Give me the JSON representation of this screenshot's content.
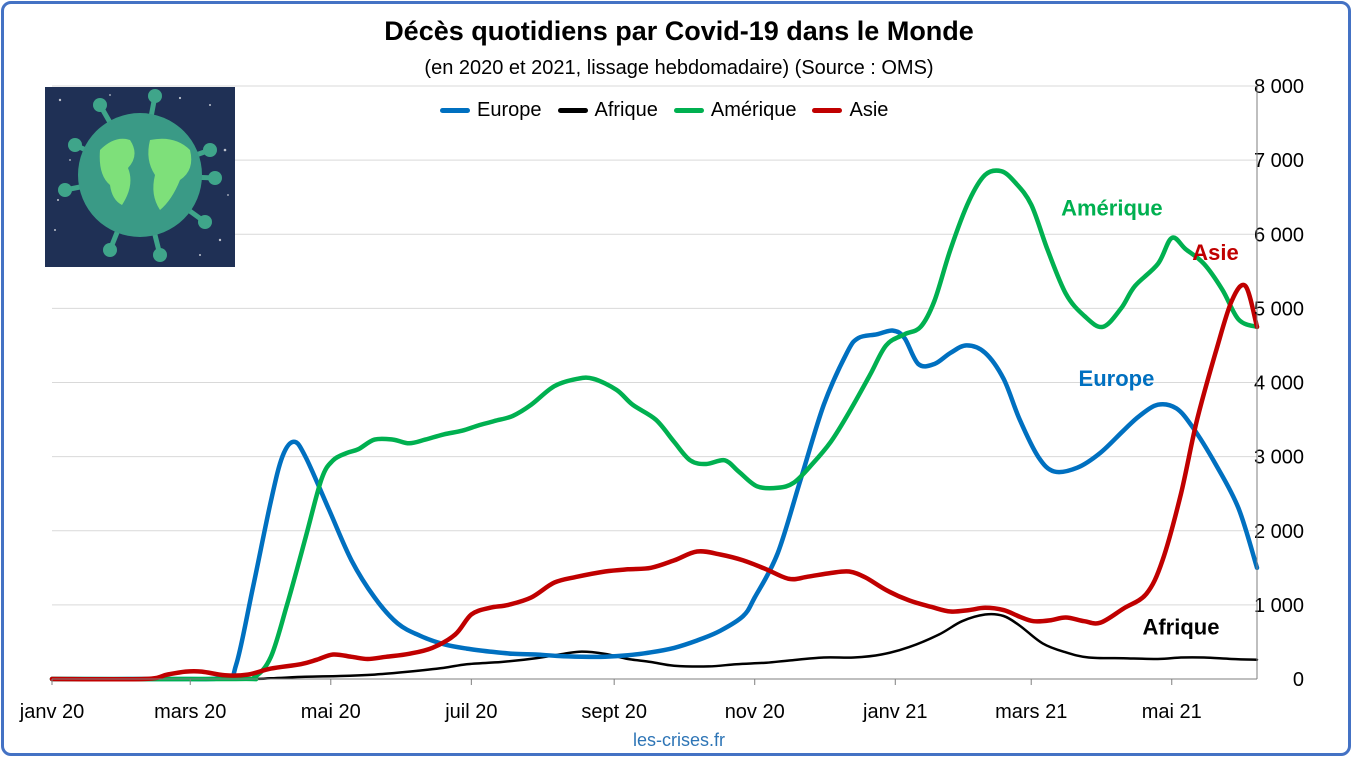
{
  "chart_data": {
    "type": "line",
    "title": "Décès quotidiens par Covid-19 dans le Monde",
    "subtitle": "(en 2020 et 2021, lissage hebdomadaire) (Source : OMS)",
    "source": "les-crises.fr",
    "x_tick_labels": [
      "janv 20",
      "mars 20",
      "mai 20",
      "juil 20",
      "sept 20",
      "nov 20",
      "janv 21",
      "mars 21",
      "mai 21"
    ],
    "x_tick_days": [
      0,
      60,
      121,
      182,
      244,
      305,
      366,
      425,
      486
    ],
    "x_range": [
      "2020-01-01",
      "2021-06-07"
    ],
    "x_range_days": [
      0,
      523
    ],
    "y_ticks": [
      0,
      1000,
      2000,
      3000,
      4000,
      5000,
      6000,
      7000,
      8000
    ],
    "y_tick_labels": [
      "0",
      "1 000",
      "2 000",
      "3 000",
      "4 000",
      "5 000",
      "6 000",
      "7 000",
      "8 000"
    ],
    "ylim": [
      0,
      8000
    ],
    "y_axis_side": "right",
    "grid": true,
    "legend_position": "top",
    "series": [
      {
        "name": "Europe",
        "color": "#0070c0",
        "label": "Europe",
        "points": [
          [
            0,
            0
          ],
          [
            50,
            0
          ],
          [
            75,
            20
          ],
          [
            80,
            200
          ],
          [
            87,
            1200
          ],
          [
            95,
            2400
          ],
          [
            100,
            3000
          ],
          [
            105,
            3200
          ],
          [
            110,
            3000
          ],
          [
            120,
            2300
          ],
          [
            130,
            1600
          ],
          [
            140,
            1100
          ],
          [
            150,
            750
          ],
          [
            160,
            580
          ],
          [
            170,
            470
          ],
          [
            180,
            410
          ],
          [
            190,
            370
          ],
          [
            200,
            340
          ],
          [
            210,
            330
          ],
          [
            220,
            310
          ],
          [
            230,
            300
          ],
          [
            240,
            300
          ],
          [
            250,
            320
          ],
          [
            260,
            360
          ],
          [
            270,
            420
          ],
          [
            280,
            520
          ],
          [
            290,
            650
          ],
          [
            300,
            850
          ],
          [
            305,
            1100
          ],
          [
            315,
            1700
          ],
          [
            325,
            2700
          ],
          [
            335,
            3700
          ],
          [
            345,
            4400
          ],
          [
            350,
            4600
          ],
          [
            358,
            4650
          ],
          [
            365,
            4700
          ],
          [
            370,
            4600
          ],
          [
            376,
            4250
          ],
          [
            383,
            4250
          ],
          [
            390,
            4400
          ],
          [
            397,
            4500
          ],
          [
            405,
            4400
          ],
          [
            413,
            4050
          ],
          [
            420,
            3500
          ],
          [
            428,
            3000
          ],
          [
            435,
            2800
          ],
          [
            445,
            2850
          ],
          [
            455,
            3050
          ],
          [
            465,
            3350
          ],
          [
            472,
            3550
          ],
          [
            480,
            3700
          ],
          [
            488,
            3650
          ],
          [
            495,
            3400
          ],
          [
            505,
            2900
          ],
          [
            515,
            2300
          ],
          [
            523,
            1500
          ]
        ]
      },
      {
        "name": "Afrique",
        "color": "#000000",
        "label": "Afrique",
        "points": [
          [
            0,
            0
          ],
          [
            80,
            0
          ],
          [
            95,
            10
          ],
          [
            110,
            30
          ],
          [
            125,
            40
          ],
          [
            140,
            60
          ],
          [
            155,
            100
          ],
          [
            170,
            150
          ],
          [
            180,
            200
          ],
          [
            195,
            230
          ],
          [
            210,
            280
          ],
          [
            222,
            340
          ],
          [
            230,
            370
          ],
          [
            240,
            340
          ],
          [
            250,
            270
          ],
          [
            260,
            230
          ],
          [
            270,
            180
          ],
          [
            285,
            170
          ],
          [
            297,
            200
          ],
          [
            310,
            220
          ],
          [
            320,
            250
          ],
          [
            335,
            290
          ],
          [
            348,
            290
          ],
          [
            360,
            330
          ],
          [
            372,
            430
          ],
          [
            385,
            600
          ],
          [
            395,
            780
          ],
          [
            405,
            870
          ],
          [
            413,
            850
          ],
          [
            420,
            720
          ],
          [
            430,
            480
          ],
          [
            440,
            360
          ],
          [
            450,
            290
          ],
          [
            465,
            280
          ],
          [
            480,
            270
          ],
          [
            490,
            290
          ],
          [
            500,
            290
          ],
          [
            512,
            270
          ],
          [
            523,
            260
          ]
        ]
      },
      {
        "name": "Amérique",
        "color": "#00b050",
        "label": "Amérique",
        "points": [
          [
            0,
            0
          ],
          [
            80,
            0
          ],
          [
            88,
            30
          ],
          [
            95,
            300
          ],
          [
            102,
            1000
          ],
          [
            110,
            1900
          ],
          [
            117,
            2700
          ],
          [
            122,
            2950
          ],
          [
            128,
            3050
          ],
          [
            133,
            3100
          ],
          [
            140,
            3230
          ],
          [
            148,
            3230
          ],
          [
            155,
            3180
          ],
          [
            162,
            3230
          ],
          [
            170,
            3300
          ],
          [
            178,
            3350
          ],
          [
            185,
            3420
          ],
          [
            192,
            3480
          ],
          [
            200,
            3550
          ],
          [
            208,
            3700
          ],
          [
            218,
            3950
          ],
          [
            228,
            4050
          ],
          [
            235,
            4050
          ],
          [
            245,
            3900
          ],
          [
            252,
            3700
          ],
          [
            262,
            3500
          ],
          [
            270,
            3200
          ],
          [
            277,
            2950
          ],
          [
            284,
            2900
          ],
          [
            292,
            2950
          ],
          [
            298,
            2800
          ],
          [
            306,
            2600
          ],
          [
            315,
            2580
          ],
          [
            322,
            2650
          ],
          [
            330,
            2900
          ],
          [
            338,
            3200
          ],
          [
            346,
            3600
          ],
          [
            355,
            4100
          ],
          [
            362,
            4500
          ],
          [
            370,
            4650
          ],
          [
            377,
            4750
          ],
          [
            383,
            5100
          ],
          [
            390,
            5800
          ],
          [
            398,
            6450
          ],
          [
            405,
            6800
          ],
          [
            412,
            6850
          ],
          [
            418,
            6700
          ],
          [
            425,
            6400
          ],
          [
            432,
            5800
          ],
          [
            440,
            5200
          ],
          [
            448,
            4900
          ],
          [
            456,
            4750
          ],
          [
            464,
            5000
          ],
          [
            470,
            5300
          ],
          [
            480,
            5600
          ],
          [
            486,
            5950
          ],
          [
            492,
            5800
          ],
          [
            500,
            5600
          ],
          [
            508,
            5250
          ],
          [
            515,
            4850
          ],
          [
            523,
            4750
          ]
        ]
      },
      {
        "name": "Asie",
        "color": "#c00000",
        "label": "Asie",
        "points": [
          [
            0,
            0
          ],
          [
            40,
            0
          ],
          [
            50,
            60
          ],
          [
            58,
            100
          ],
          [
            65,
            100
          ],
          [
            75,
            50
          ],
          [
            85,
            60
          ],
          [
            95,
            140
          ],
          [
            108,
            200
          ],
          [
            115,
            260
          ],
          [
            122,
            330
          ],
          [
            130,
            300
          ],
          [
            137,
            270
          ],
          [
            145,
            300
          ],
          [
            155,
            340
          ],
          [
            165,
            420
          ],
          [
            175,
            600
          ],
          [
            182,
            870
          ],
          [
            190,
            960
          ],
          [
            198,
            1000
          ],
          [
            208,
            1100
          ],
          [
            218,
            1300
          ],
          [
            228,
            1380
          ],
          [
            240,
            1450
          ],
          [
            250,
            1480
          ],
          [
            260,
            1500
          ],
          [
            270,
            1600
          ],
          [
            280,
            1720
          ],
          [
            290,
            1680
          ],
          [
            300,
            1600
          ],
          [
            310,
            1480
          ],
          [
            320,
            1350
          ],
          [
            328,
            1380
          ],
          [
            338,
            1430
          ],
          [
            346,
            1450
          ],
          [
            353,
            1370
          ],
          [
            362,
            1200
          ],
          [
            372,
            1060
          ],
          [
            382,
            970
          ],
          [
            390,
            910
          ],
          [
            398,
            930
          ],
          [
            405,
            960
          ],
          [
            413,
            930
          ],
          [
            420,
            840
          ],
          [
            426,
            780
          ],
          [
            433,
            790
          ],
          [
            440,
            830
          ],
          [
            448,
            780
          ],
          [
            455,
            760
          ],
          [
            465,
            950
          ],
          [
            475,
            1150
          ],
          [
            482,
            1600
          ],
          [
            490,
            2500
          ],
          [
            497,
            3500
          ],
          [
            505,
            4400
          ],
          [
            512,
            5100
          ],
          [
            518,
            5300
          ],
          [
            523,
            4750
          ]
        ]
      }
    ],
    "image": "covid-globe-illustration"
  }
}
